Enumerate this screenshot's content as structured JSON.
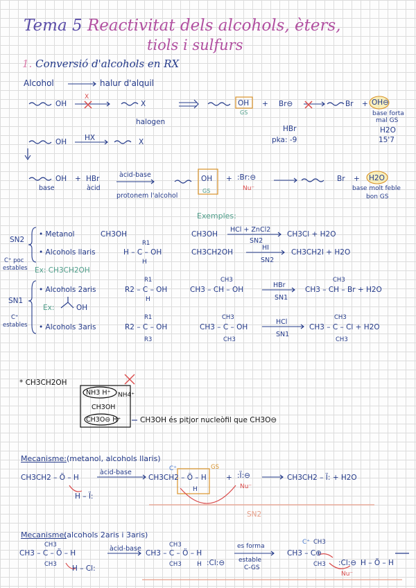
{
  "title": {
    "number": "Tema 5",
    "line1": "Reactivitat dels alcohols, èters,",
    "line2": "tiols i sulfurs"
  },
  "section1": {
    "number": "1.",
    "heading": "Conversió d'alcohols en RX"
  },
  "intro": {
    "alcohol": "Alcohol",
    "halur": "halur d'alquil"
  },
  "row1": {
    "left_group": "OH",
    "x_mark": "X",
    "right_group": "X",
    "halogen": "halogen",
    "oh_box": "OH",
    "gs1": "GS",
    "plus": "+",
    "br": "Br⊖",
    "br_product": "Br",
    "plus2": "+",
    "oh_circle": "OH⊖",
    "base_forta": "base forta",
    "mal_gs": "mal GS"
  },
  "row2": {
    "reactant": "OH",
    "reagent": "HX",
    "product": "X",
    "hbr": "HBr",
    "pka": "pka: -9",
    "h2o": "H2O",
    "pka_h2o": "15'7"
  },
  "row3": {
    "reactant": "OH",
    "plus": "+",
    "hbr": "HBr",
    "acid_base": "àcid-base",
    "base": "base",
    "acid": "àcid",
    "oh2": "OH",
    "plus2": "+",
    "br": ":Br:⊖",
    "nu": "Nu⁻",
    "gs": "GS",
    "product": "Br",
    "plus3": "+",
    "h2o": "H2O",
    "base_molt": "base molt feble",
    "bon_gs": "bon GS",
    "protonem": "protonem l'alcohol"
  },
  "examples": {
    "label": "Exemples:"
  },
  "sn2": {
    "label": "SN2",
    "c_poc": "C⁺ poc",
    "estables": "estables",
    "metanol": "• Metanol",
    "ch3oh": "CH3OH",
    "r1": "R1",
    "alc_llaris": "• Alcohols llaris",
    "h_c_oh": "H – C – OH",
    "h": "H",
    "ex": "Ex: CH3CH2OH",
    "rxn1_left": "CH3OH",
    "rxn1_reagent": "HCl + ZnCl2",
    "rxn1_cond": "SN2",
    "rxn1_right": "CH3Cl + H2O",
    "rxn2_left": "CH3CH2OH",
    "rxn2_reagent": "HI",
    "rxn2_cond": "SN2",
    "rxn2_right": "CH3CH2I + H2O"
  },
  "sn1": {
    "label": "SN1",
    "c_estables": "C⁺",
    "estables": "estables",
    "r1a": "R1",
    "alc_2aris": "• Alcohols 2aris",
    "r2_c_oh": "R2 – C – OH",
    "h": "H",
    "ex": "Ex:",
    "oh": "OH",
    "r1b": "R1",
    "alc_3aris": "• Alcohols 3aris",
    "r2_c_oh_b": "R2 – C – OH",
    "r3": "R3",
    "rxn1_ch3": "CH3",
    "rxn1_left": "CH3 – CH – OH",
    "rxn1_reagent": "HBr",
    "rxn1_cond": "SN1",
    "rxn1_right_top": "CH3",
    "rxn1_right": "CH3 – CH – Br + H2O",
    "rxn2_top": "CH3",
    "rxn2_left": "CH3 – C – OH",
    "rxn2_bot": "CH3",
    "rxn2_reagent": "HCl",
    "rxn2_cond": "SN1",
    "rxn2_right_top": "CH3",
    "rxn2_right": "CH3 – C – Cl + H2O",
    "rxn2_right_bot": "CH3"
  },
  "note": {
    "star": "* CH3CH2OH",
    "nh3": "NH3 H⁺",
    "nh4": "NH4⁺",
    "ch3oh": "CH3OH",
    "ch3o": "CH3O⊖ H⁺",
    "x": "X",
    "comment": "CH3OH és pitjor nucleòfil que CH3O⊖"
  },
  "mech1": {
    "heading": "Mecanisme:",
    "subtitle": "(metanol, alcohols llaris)",
    "reactant": "CH3CH2 – Ö – H",
    "acid_base": "àcid-base",
    "h_i": "H – Ï:",
    "intermediate": "CH3CH2 – Ö – H",
    "h": "H",
    "cplus": "C⁺",
    "gs": "GS",
    "plus": "+",
    "iodide": ":Ï:⊖",
    "nu": "Nu⁻",
    "product": "CH3CH2 – Ï: + H2O",
    "sn2": "SN2"
  },
  "mech2": {
    "heading": "Mecanisme:",
    "subtitle": "(alcohols 2aris i 3aris)",
    "ch3_top": "CH3",
    "reactant": "CH3 – C – Ö – H",
    "ch3_bot": "CH3",
    "h_cl": "H – Cl:",
    "acid_base": "àcid-base",
    "ch3_top2": "CH3",
    "intermediate": "CH3 – C – Ö – H",
    "ch3_bot2": "CH3",
    "h": "H",
    "cl": ":Cl:⊖",
    "es_forma": "es forma",
    "estable": "estable",
    "c_gs": "C-GS",
    "ch3_top3": "CH3",
    "carbocation": "CH3 – C⊕",
    "ch3_bot3": "CH3",
    "cplus": "C⁺",
    "cl2": ":Cl:⊖",
    "nu": "Nu⁻",
    "water": "H – Ö – H"
  },
  "colors": {
    "ink": "#243a8a",
    "pink": "#b14fa0",
    "green": "#4f9e8a",
    "red": "#d94a4a",
    "orange": "#d9932a",
    "highlight": "#f5e58a"
  }
}
